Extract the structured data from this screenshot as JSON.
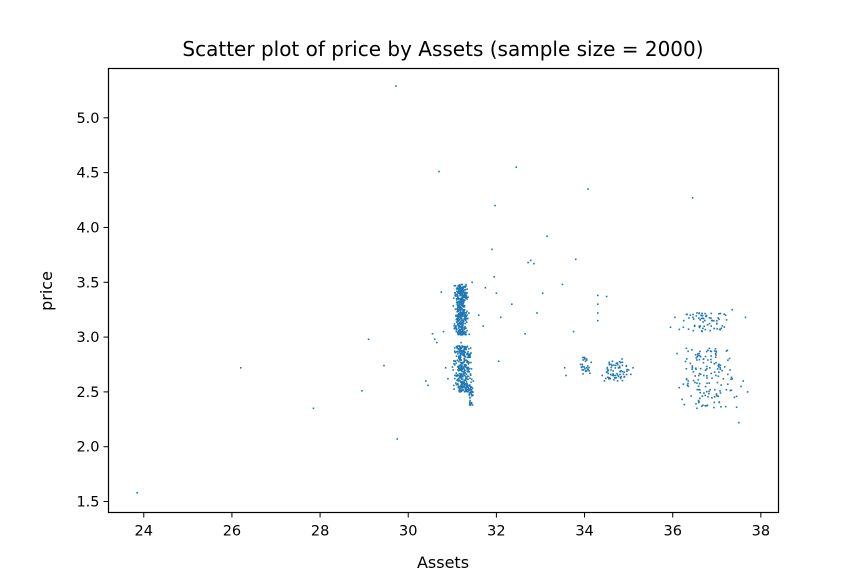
{
  "chart_data": {
    "type": "scatter",
    "title": "Scatter plot of price by Assets (sample size = 2000)",
    "xlabel": "Assets",
    "ylabel": "price",
    "xlim": [
      23.2,
      38.4
    ],
    "ylim": [
      1.4,
      5.45
    ],
    "xticks": [
      24,
      26,
      28,
      30,
      32,
      34,
      36,
      38
    ],
    "yticks": [
      1.5,
      2.0,
      2.5,
      3.0,
      3.5,
      4.0,
      4.5,
      5.0
    ],
    "xtick_labels": [
      "24",
      "26",
      "28",
      "30",
      "32",
      "34",
      "36",
      "38"
    ],
    "ytick_labels": [
      "1.5",
      "2.0",
      "2.5",
      "3.0",
      "3.5",
      "4.0",
      "4.5",
      "5.0"
    ],
    "grid": false,
    "legend": "none",
    "marker_color": "#1f77b4",
    "series": [
      {
        "points": [
          [
            23.85,
            1.58
          ],
          [
            26.2,
            2.72
          ],
          [
            27.85,
            2.35
          ],
          [
            28.95,
            2.51
          ],
          [
            29.1,
            2.98
          ],
          [
            29.45,
            2.74
          ],
          [
            29.75,
            2.07
          ],
          [
            29.72,
            5.29
          ],
          [
            30.4,
            2.6
          ],
          [
            30.45,
            2.56
          ],
          [
            30.55,
            3.03
          ],
          [
            30.6,
            2.98
          ],
          [
            30.65,
            2.95
          ],
          [
            30.7,
            4.51
          ],
          [
            30.75,
            3.41
          ],
          [
            30.8,
            3.05
          ],
          [
            30.85,
            2.72
          ],
          [
            30.9,
            2.62
          ],
          [
            31.05,
            3.12
          ],
          [
            31.1,
            3.44
          ],
          [
            31.15,
            3.25
          ],
          [
            31.2,
            2.95
          ],
          [
            31.25,
            3.38
          ],
          [
            31.3,
            2.82
          ],
          [
            31.02,
            2.7
          ],
          [
            31.08,
            2.58
          ],
          [
            31.18,
            2.88
          ],
          [
            31.28,
            3.05
          ],
          [
            31.35,
            2.52
          ],
          [
            31.4,
            2.45
          ],
          [
            31.45,
            3.5
          ],
          [
            31.6,
            3.2
          ],
          [
            31.7,
            3.1
          ],
          [
            31.75,
            3.45
          ],
          [
            31.9,
            3.8
          ],
          [
            31.95,
            3.55
          ],
          [
            31.97,
            4.2
          ],
          [
            32.0,
            3.4
          ],
          [
            32.05,
            2.78
          ],
          [
            32.1,
            3.18
          ],
          [
            32.35,
            3.3
          ],
          [
            32.45,
            4.55
          ],
          [
            32.65,
            3.03
          ],
          [
            32.72,
            3.68
          ],
          [
            32.78,
            3.7
          ],
          [
            32.85,
            3.67
          ],
          [
            32.92,
            3.22
          ],
          [
            33.05,
            3.4
          ],
          [
            33.15,
            3.92
          ],
          [
            33.5,
            3.48
          ],
          [
            33.55,
            2.72
          ],
          [
            33.58,
            2.65
          ],
          [
            33.75,
            3.05
          ],
          [
            33.8,
            3.71
          ],
          [
            33.95,
            2.75
          ],
          [
            34.0,
            2.8
          ],
          [
            34.05,
            2.72
          ],
          [
            34.08,
            4.35
          ],
          [
            34.12,
            2.67
          ],
          [
            34.15,
            2.77
          ],
          [
            34.3,
            3.38
          ],
          [
            34.3,
            3.3
          ],
          [
            34.3,
            3.22
          ],
          [
            34.3,
            3.15
          ],
          [
            34.5,
            3.37
          ],
          [
            34.4,
            2.65
          ],
          [
            34.45,
            2.6
          ],
          [
            34.5,
            2.68
          ],
          [
            34.55,
            2.62
          ],
          [
            34.6,
            2.7
          ],
          [
            34.7,
            2.65
          ],
          [
            34.8,
            2.72
          ],
          [
            34.85,
            2.8
          ],
          [
            34.9,
            2.68
          ],
          [
            34.95,
            2.74
          ],
          [
            35.0,
            2.7
          ],
          [
            35.05,
            2.66
          ],
          [
            35.1,
            2.72
          ],
          [
            35.95,
            3.09
          ],
          [
            36.05,
            3.18
          ],
          [
            36.1,
            2.85
          ],
          [
            36.15,
            3.07
          ],
          [
            36.25,
            3.15
          ],
          [
            36.35,
            2.87
          ],
          [
            36.4,
            3.2
          ],
          [
            36.45,
            4.27
          ],
          [
            36.5,
            3.1
          ],
          [
            36.55,
            3.22
          ],
          [
            36.6,
            2.85
          ],
          [
            36.65,
            3.17
          ],
          [
            36.7,
            2.8
          ],
          [
            36.75,
            3.19
          ],
          [
            36.8,
            2.88
          ],
          [
            36.85,
            2.52
          ],
          [
            36.9,
            3.15
          ],
          [
            36.95,
            2.68
          ],
          [
            37.0,
            3.12
          ],
          [
            37.05,
            2.75
          ],
          [
            37.1,
            3.08
          ],
          [
            37.15,
            2.62
          ],
          [
            37.2,
            3.2
          ],
          [
            37.25,
            2.57
          ],
          [
            37.3,
            2.7
          ],
          [
            37.35,
            3.25
          ],
          [
            37.4,
            2.45
          ],
          [
            37.45,
            2.36
          ],
          [
            37.5,
            2.22
          ],
          [
            37.55,
            2.55
          ],
          [
            37.6,
            2.6
          ],
          [
            37.65,
            3.18
          ],
          [
            37.7,
            2.5
          ],
          [
            37.35,
            2.62
          ],
          [
            37.25,
            2.66
          ]
        ],
        "clusters": [
          {
            "x_min": 31.0,
            "x_max": 31.4,
            "y_min": 3.02,
            "y_max": 3.48,
            "count": 380
          },
          {
            "x_min": 30.95,
            "x_max": 31.5,
            "y_min": 2.5,
            "y_max": 2.92,
            "count": 320
          },
          {
            "x_min": 31.35,
            "x_max": 31.5,
            "y_min": 2.38,
            "y_max": 2.62,
            "count": 40
          },
          {
            "x_min": 34.35,
            "x_max": 35.1,
            "y_min": 2.6,
            "y_max": 2.78,
            "count": 60
          },
          {
            "x_min": 33.85,
            "x_max": 34.15,
            "y_min": 2.66,
            "y_max": 2.82,
            "count": 25
          },
          {
            "x_min": 36.05,
            "x_max": 37.45,
            "y_min": 3.05,
            "y_max": 3.22,
            "count": 60
          },
          {
            "x_min": 36.0,
            "x_max": 37.6,
            "y_min": 2.35,
            "y_max": 2.9,
            "count": 140
          }
        ]
      }
    ]
  }
}
